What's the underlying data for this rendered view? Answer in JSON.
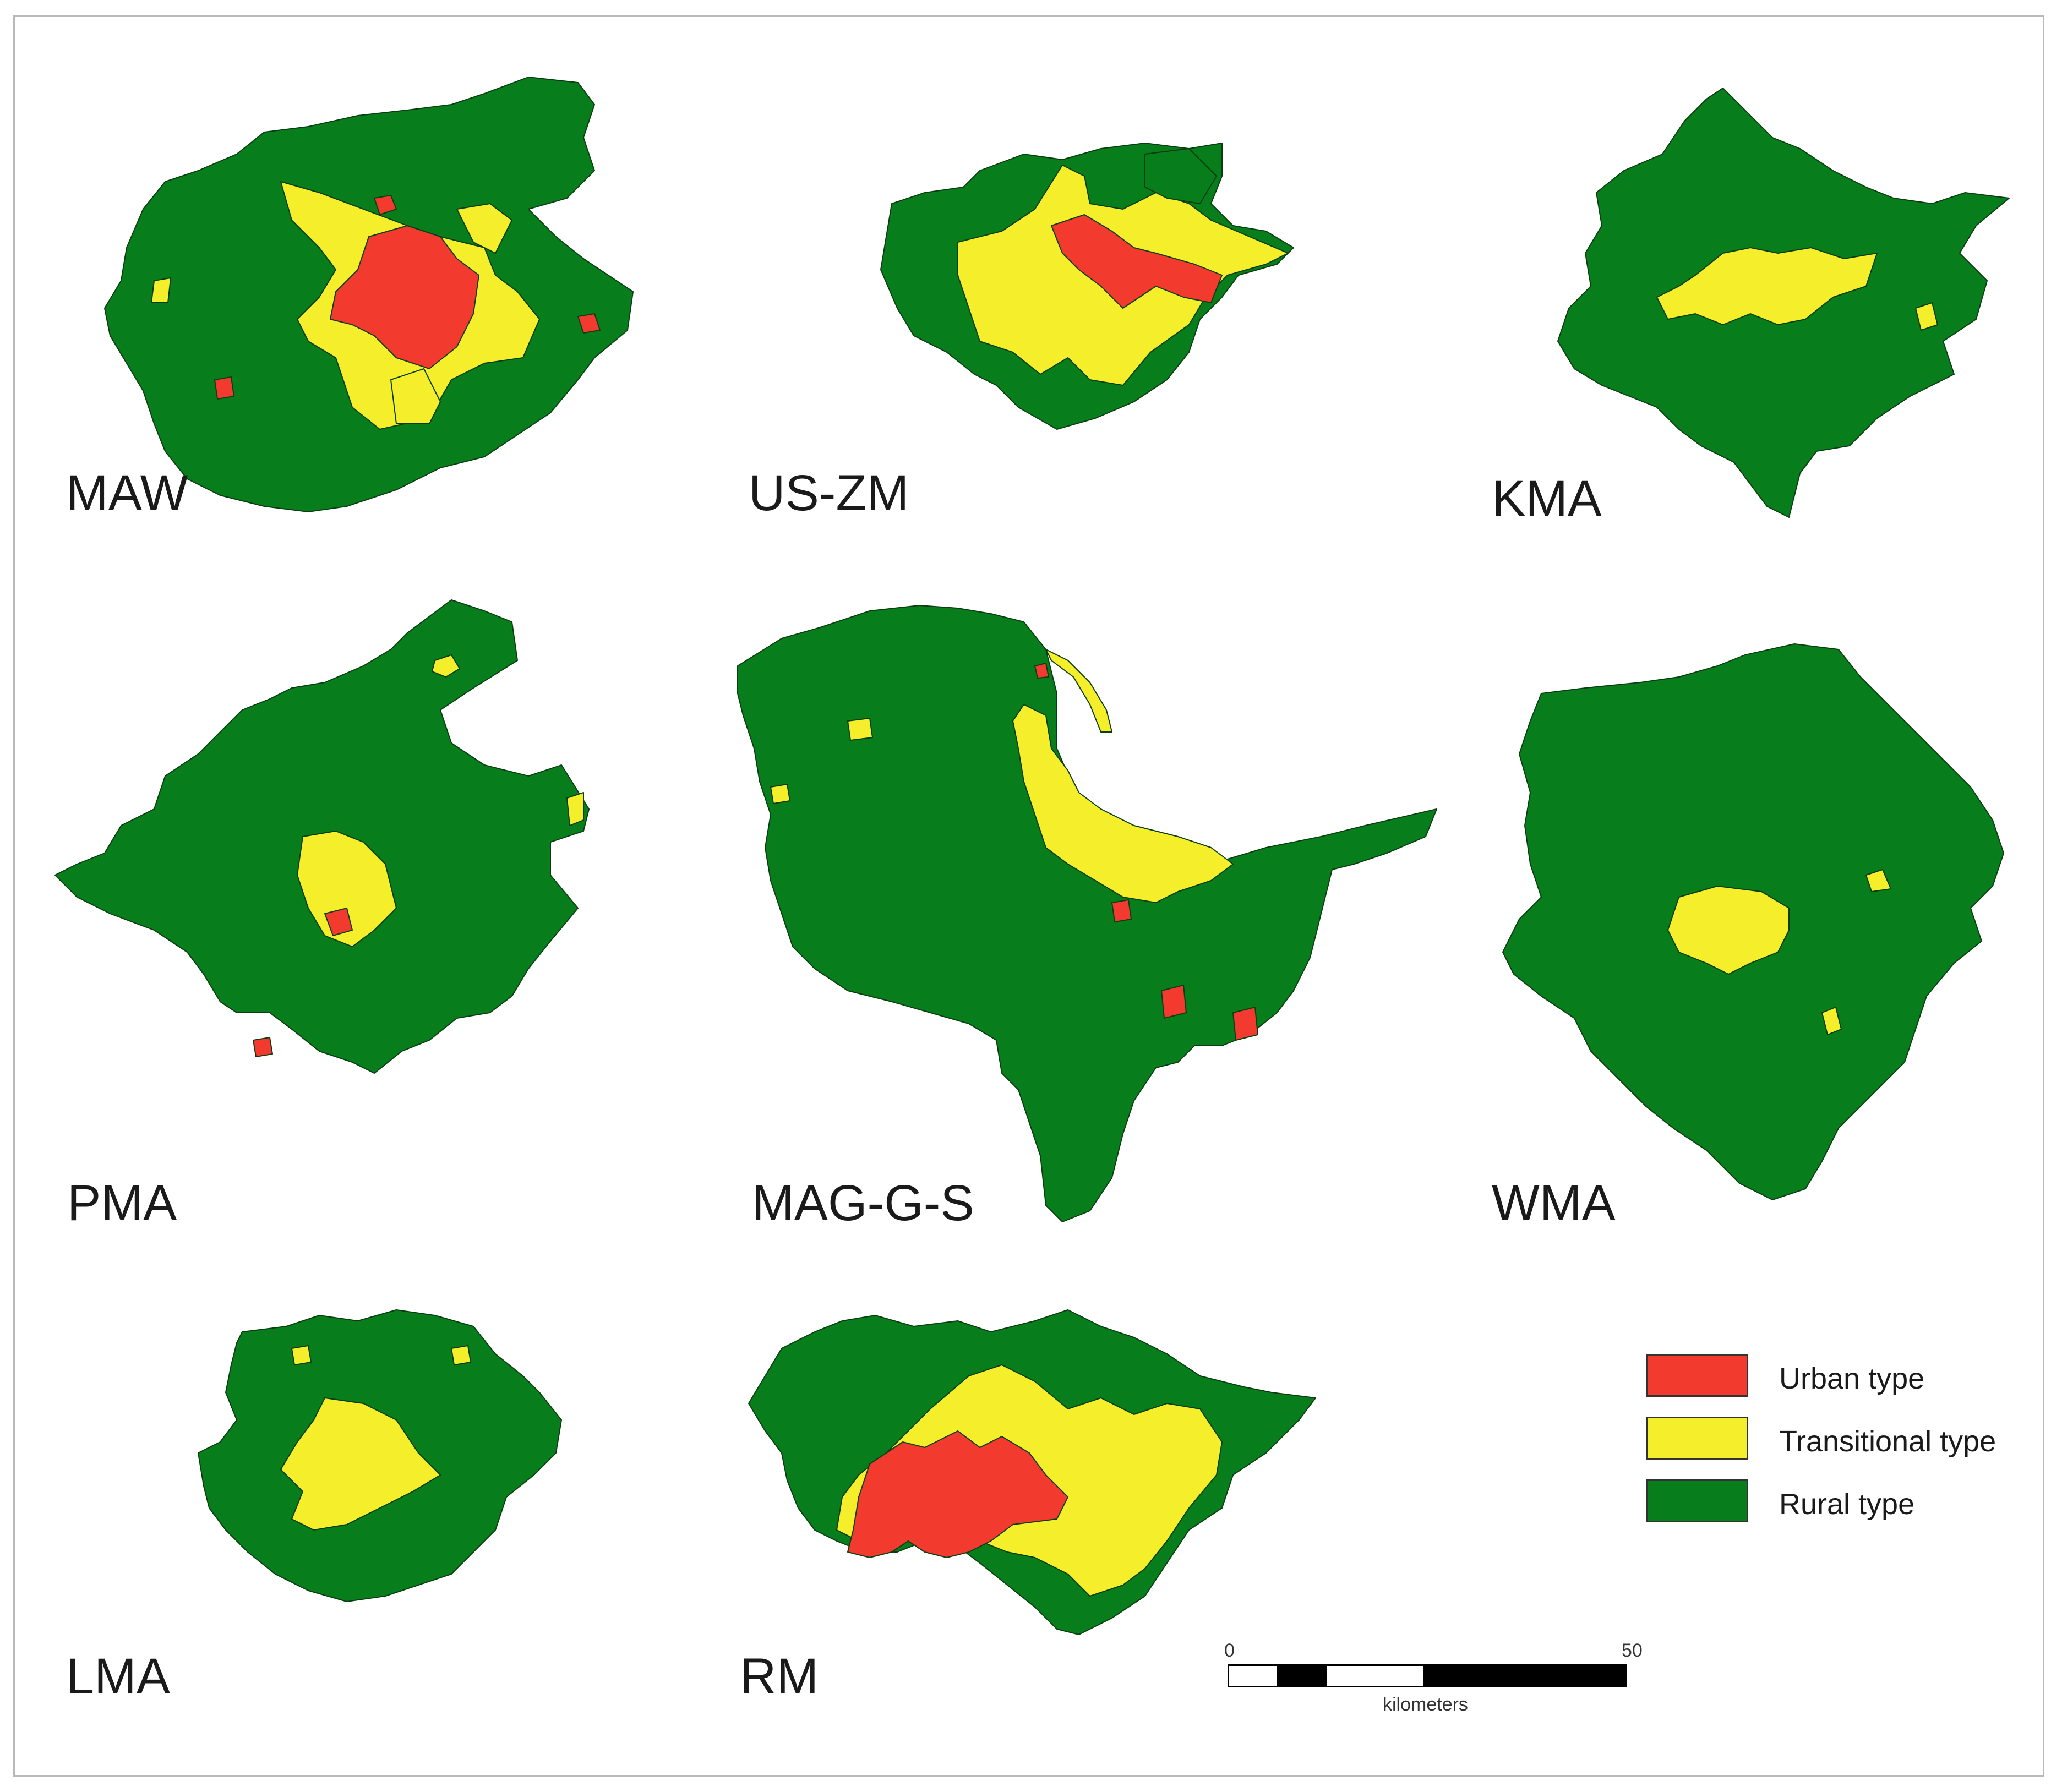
{
  "colors": {
    "urban": "#f23a2e",
    "transitional": "#f5ee2a",
    "rural": "#077d1c",
    "border": "#0a3d10"
  },
  "regions": [
    {
      "id": "maw",
      "label": "MAW"
    },
    {
      "id": "us-zm",
      "label": "US-ZM"
    },
    {
      "id": "kma",
      "label": "KMA"
    },
    {
      "id": "pma",
      "label": "PMA"
    },
    {
      "id": "mag-g-s",
      "label": "MAG-G-S"
    },
    {
      "id": "wma",
      "label": "WMA"
    },
    {
      "id": "lma",
      "label": "LMA"
    },
    {
      "id": "rm",
      "label": "RM"
    }
  ],
  "legend": {
    "items": [
      {
        "label": "Urban type",
        "color": "#f23a2e"
      },
      {
        "label": "Transitional type",
        "color": "#f5ee2a"
      },
      {
        "label": "Rural type",
        "color": "#077d1c"
      }
    ]
  },
  "scalebar": {
    "start": "0",
    "end": "50",
    "unit": "kilometers"
  }
}
